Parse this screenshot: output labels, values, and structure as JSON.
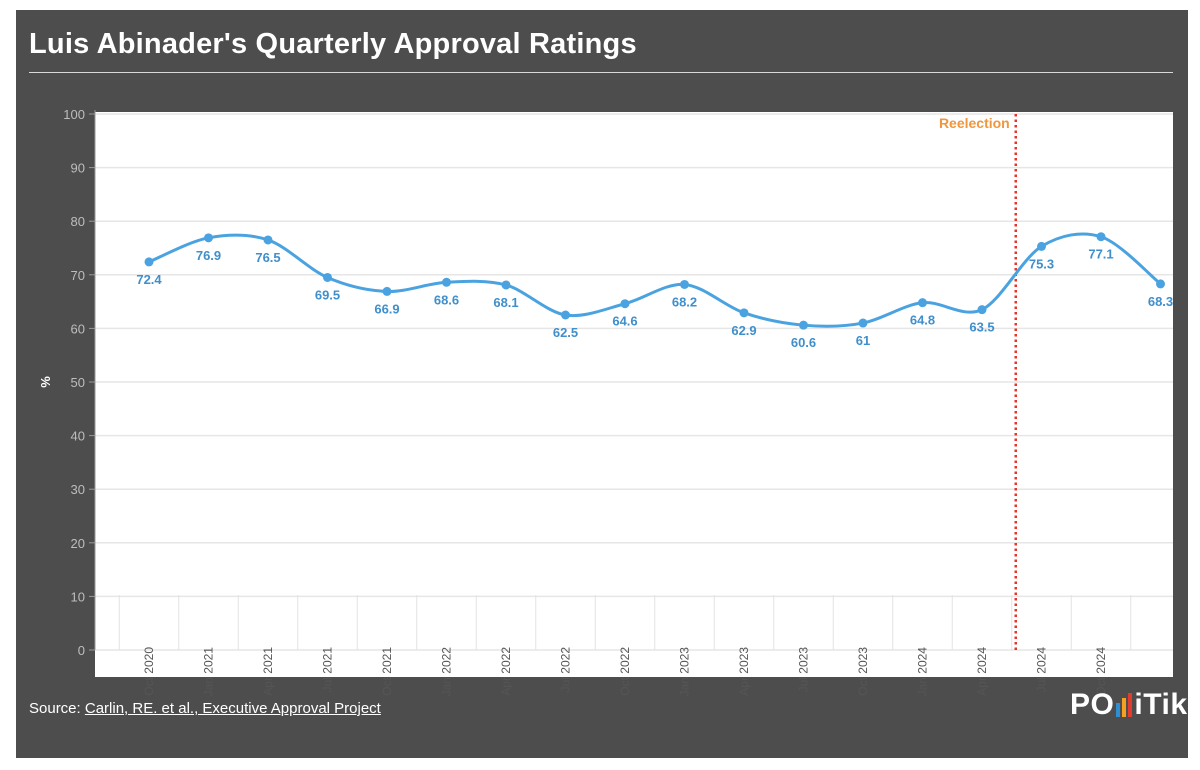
{
  "title": "Luis Abinader's Quarterly Approval Ratings",
  "source": {
    "prefix": "Source: ",
    "link_text": "Carlin, RE. et al., Executive Approval Project"
  },
  "logo": {
    "left": "PO",
    "right": "iTik",
    "bar_colors": [
      "#2e8ecf",
      "#f3a023",
      "#e23c2f"
    ]
  },
  "colors": {
    "frame": "#4d4d4d",
    "line": "#4aa3e0",
    "annotation_text": "#f0963c",
    "annotation_line": "#e8332a",
    "grid": "#e6e6e6",
    "axis_text": "#555555"
  },
  "chart_data": {
    "type": "line",
    "title": "Luis Abinader's Quarterly Approval Ratings",
    "xlabel": "",
    "ylabel": "%",
    "ylim": [
      0,
      100
    ],
    "yticks": [
      0,
      10,
      20,
      30,
      40,
      50,
      60,
      70,
      80,
      90,
      100
    ],
    "grid": true,
    "categories": [
      "Oct 2020",
      "Jan 2021",
      "Apr 2021",
      "Jul 2021",
      "Oct 2021",
      "Jan 2022",
      "Apr 2022",
      "Jul 2022",
      "Oct 2022",
      "Jan 2023",
      "Apr 2023",
      "Jul 2023",
      "Oct 2023",
      "Jan 2024",
      "Apr 2024",
      "Jul 2024",
      "Oct 2024",
      ""
    ],
    "series": [
      {
        "name": "Approval",
        "values": [
          72.4,
          76.9,
          76.5,
          69.5,
          66.9,
          68.6,
          68.1,
          62.5,
          64.6,
          68.2,
          62.9,
          60.6,
          61,
          64.8,
          63.5,
          75.3,
          77.1,
          68.3
        ],
        "labels": [
          "72.4",
          "76.9",
          "76.5",
          "69.5",
          "66.9",
          "68.6",
          "68.1",
          "62.5",
          "64.6",
          "68.2",
          "62.9",
          "60.6",
          "61",
          "64.8",
          "63.5",
          "75.3",
          "77.1",
          "68.3"
        ]
      }
    ],
    "annotations": [
      {
        "text": "Reelection",
        "x_between": [
          "Apr 2024",
          "Jul 2024"
        ],
        "style": "dotted-vertical-line"
      }
    ]
  }
}
